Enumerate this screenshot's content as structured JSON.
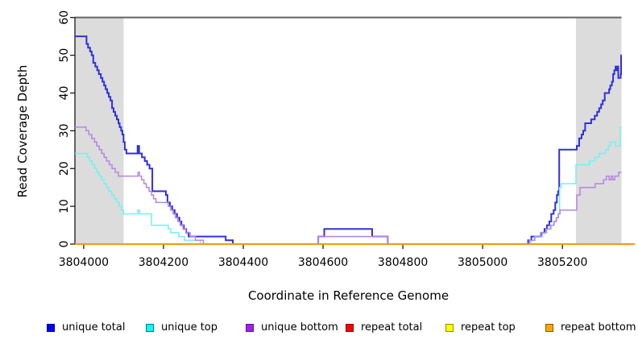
{
  "figure": {
    "background": "#FFFFFF"
  },
  "chart_data": {
    "type": "line",
    "subtype": "step-after",
    "title": "",
    "xlabel": "Coordinate in Reference Genome",
    "ylabel": "Read Coverage Depth",
    "xlim": [
      3803978,
      3805348
    ],
    "ylim": [
      0,
      60
    ],
    "x_ticks": [
      3804000,
      3804200,
      3804400,
      3804600,
      3804800,
      3805000,
      3805200
    ],
    "y_ticks": [
      0,
      10,
      20,
      30,
      40,
      50,
      60
    ],
    "grid": false,
    "legend_position": "bottom",
    "shaded_regions": [
      {
        "from": 3803978,
        "to": 3804100,
        "color": "#DCDCDC"
      },
      {
        "from": 3805234,
        "to": 3805348,
        "color": "#DCDCDC"
      }
    ],
    "top_reference_line": {
      "y": 60,
      "color": "#6B6B6B"
    },
    "series": [
      {
        "name": "unique total",
        "color": "#3030DC",
        "width": 2.0,
        "full_width": false,
        "points": [
          [
            3803978,
            55
          ],
          [
            3804007,
            53
          ],
          [
            3804011,
            52
          ],
          [
            3804016,
            51
          ],
          [
            3804020,
            50
          ],
          [
            3804024,
            48
          ],
          [
            3804029,
            47
          ],
          [
            3804034,
            46
          ],
          [
            3804038,
            45
          ],
          [
            3804043,
            44
          ],
          [
            3804047,
            43
          ],
          [
            3804051,
            42
          ],
          [
            3804055,
            41
          ],
          [
            3804059,
            40
          ],
          [
            3804063,
            39
          ],
          [
            3804067,
            38
          ],
          [
            3804071,
            36
          ],
          [
            3804075,
            35
          ],
          [
            3804079,
            34
          ],
          [
            3804083,
            33
          ],
          [
            3804087,
            32
          ],
          [
            3804090,
            31
          ],
          [
            3804094,
            30
          ],
          [
            3804097,
            29
          ],
          [
            3804100,
            27
          ],
          [
            3804103,
            25
          ],
          [
            3804107,
            24
          ],
          [
            3804135,
            26
          ],
          [
            3804139,
            24
          ],
          [
            3804146,
            23
          ],
          [
            3804153,
            22
          ],
          [
            3804159,
            21
          ],
          [
            3804165,
            20
          ],
          [
            3804172,
            14
          ],
          [
            3804206,
            13
          ],
          [
            3804210,
            11
          ],
          [
            3804216,
            10
          ],
          [
            3804222,
            9
          ],
          [
            3804228,
            8
          ],
          [
            3804234,
            7
          ],
          [
            3804240,
            6
          ],
          [
            3804245,
            5
          ],
          [
            3804251,
            4
          ],
          [
            3804257,
            3
          ],
          [
            3804263,
            2
          ],
          [
            3804356,
            1
          ],
          [
            3804374,
            0
          ],
          [
            3804588,
            2
          ],
          [
            3804603,
            4
          ],
          [
            3804723,
            2
          ],
          [
            3804762,
            0
          ],
          [
            3805114,
            1
          ],
          [
            3805122,
            2
          ],
          [
            3805148,
            3
          ],
          [
            3805155,
            4
          ],
          [
            3805161,
            5
          ],
          [
            3805167,
            6
          ],
          [
            3805172,
            8
          ],
          [
            3805178,
            9
          ],
          [
            3805182,
            11
          ],
          [
            3805186,
            13
          ],
          [
            3805189,
            14
          ],
          [
            3805192,
            25
          ],
          [
            3805236,
            26
          ],
          [
            3805242,
            28
          ],
          [
            3805248,
            29
          ],
          [
            3805252,
            30
          ],
          [
            3805257,
            32
          ],
          [
            3805272,
            33
          ],
          [
            3805281,
            34
          ],
          [
            3805287,
            35
          ],
          [
            3805292,
            36
          ],
          [
            3805297,
            37
          ],
          [
            3805301,
            38
          ],
          [
            3805306,
            40
          ],
          [
            3805317,
            41
          ],
          [
            3805320,
            42
          ],
          [
            3805324,
            43
          ],
          [
            3805327,
            45
          ],
          [
            3805330,
            46
          ],
          [
            3805333,
            47
          ],
          [
            3805335,
            46
          ],
          [
            3805337,
            47
          ],
          [
            3805340,
            44
          ],
          [
            3805346,
            45
          ],
          [
            3805347,
            50
          ]
        ]
      },
      {
        "name": "unique top",
        "color": "#6FF3EE",
        "width": 1.5,
        "full_width": false,
        "points": [
          [
            3803978,
            24
          ],
          [
            3804009,
            23
          ],
          [
            3804015,
            22
          ],
          [
            3804021,
            21
          ],
          [
            3804027,
            20
          ],
          [
            3804033,
            19
          ],
          [
            3804039,
            18
          ],
          [
            3804045,
            17
          ],
          [
            3804051,
            16
          ],
          [
            3804057,
            15
          ],
          [
            3804063,
            14
          ],
          [
            3804070,
            13
          ],
          [
            3804077,
            12
          ],
          [
            3804083,
            11
          ],
          [
            3804089,
            10
          ],
          [
            3804095,
            9
          ],
          [
            3804100,
            8
          ],
          [
            3804136,
            9
          ],
          [
            3804140,
            8
          ],
          [
            3804170,
            5
          ],
          [
            3804212,
            4
          ],
          [
            3804218,
            3
          ],
          [
            3804238,
            2
          ],
          [
            3804253,
            1
          ],
          [
            3804293,
            0
          ],
          [
            3804588,
            2
          ],
          [
            3804762,
            0
          ],
          [
            3805120,
            1
          ],
          [
            3805132,
            2
          ],
          [
            3805150,
            3
          ],
          [
            3805161,
            4
          ],
          [
            3805170,
            5
          ],
          [
            3805178,
            6
          ],
          [
            3805184,
            7
          ],
          [
            3805189,
            8
          ],
          [
            3805193,
            15
          ],
          [
            3805197,
            16
          ],
          [
            3805234,
            21
          ],
          [
            3805268,
            22
          ],
          [
            3805281,
            23
          ],
          [
            3805292,
            24
          ],
          [
            3805308,
            25
          ],
          [
            3805315,
            26
          ],
          [
            3805320,
            27
          ],
          [
            3805333,
            26
          ],
          [
            3805345,
            31
          ]
        ]
      },
      {
        "name": "unique bottom",
        "color": "#B685E2",
        "width": 1.5,
        "full_width": false,
        "points": [
          [
            3803978,
            31
          ],
          [
            3804006,
            30
          ],
          [
            3804013,
            29
          ],
          [
            3804020,
            28
          ],
          [
            3804027,
            27
          ],
          [
            3804033,
            26
          ],
          [
            3804039,
            25
          ],
          [
            3804045,
            24
          ],
          [
            3804051,
            23
          ],
          [
            3804057,
            22
          ],
          [
            3804064,
            21
          ],
          [
            3804071,
            20
          ],
          [
            3804079,
            19
          ],
          [
            3804087,
            18
          ],
          [
            3804136,
            19
          ],
          [
            3804140,
            18
          ],
          [
            3804145,
            17
          ],
          [
            3804151,
            16
          ],
          [
            3804157,
            15
          ],
          [
            3804164,
            14
          ],
          [
            3804170,
            13
          ],
          [
            3804175,
            12
          ],
          [
            3804181,
            11
          ],
          [
            3804212,
            10
          ],
          [
            3804218,
            9
          ],
          [
            3804224,
            8
          ],
          [
            3804230,
            7
          ],
          [
            3804236,
            6
          ],
          [
            3804242,
            5
          ],
          [
            3804249,
            4
          ],
          [
            3804256,
            3
          ],
          [
            3804267,
            2
          ],
          [
            3804280,
            1
          ],
          [
            3804300,
            0
          ],
          [
            3804588,
            2
          ],
          [
            3804762,
            0
          ],
          [
            3805117,
            1
          ],
          [
            3805130,
            2
          ],
          [
            3805145,
            3
          ],
          [
            3805159,
            4
          ],
          [
            3805171,
            5
          ],
          [
            3805179,
            6
          ],
          [
            3805185,
            7
          ],
          [
            3805190,
            8
          ],
          [
            3805194,
            9
          ],
          [
            3805236,
            13
          ],
          [
            3805244,
            15
          ],
          [
            3805282,
            16
          ],
          [
            3805303,
            17
          ],
          [
            3805310,
            18
          ],
          [
            3805317,
            17
          ],
          [
            3805322,
            18
          ],
          [
            3805326,
            17
          ],
          [
            3805331,
            18
          ],
          [
            3805341,
            19
          ]
        ]
      },
      {
        "name": "repeat total",
        "color": "#DD0000",
        "width": 1.5,
        "full_width": true,
        "points": [
          [
            3803978,
            0
          ]
        ]
      },
      {
        "name": "repeat top",
        "color": "#FFEE00",
        "width": 1.5,
        "full_width": true,
        "points": [
          [
            3803978,
            0
          ]
        ]
      },
      {
        "name": "repeat bottom",
        "color": "#FF9400",
        "width": 1.8,
        "full_width": true,
        "points": [
          [
            3803978,
            0
          ]
        ]
      }
    ]
  },
  "legend": {
    "items": [
      {
        "label": "unique total",
        "fill": "#0000FF",
        "border": "#000090"
      },
      {
        "label": "unique top",
        "fill": "#00FFFF",
        "border": "#007C7C"
      },
      {
        "label": "unique bottom",
        "fill": "#A020F0",
        "border": "#5E1391"
      },
      {
        "label": "repeat total",
        "fill": "#FF0000",
        "border": "#8B0000"
      },
      {
        "label": "repeat top",
        "fill": "#FFFF00",
        "border": "#8F8F00"
      },
      {
        "label": "repeat bottom",
        "fill": "#FFA500",
        "border": "#8A5A00"
      }
    ]
  }
}
